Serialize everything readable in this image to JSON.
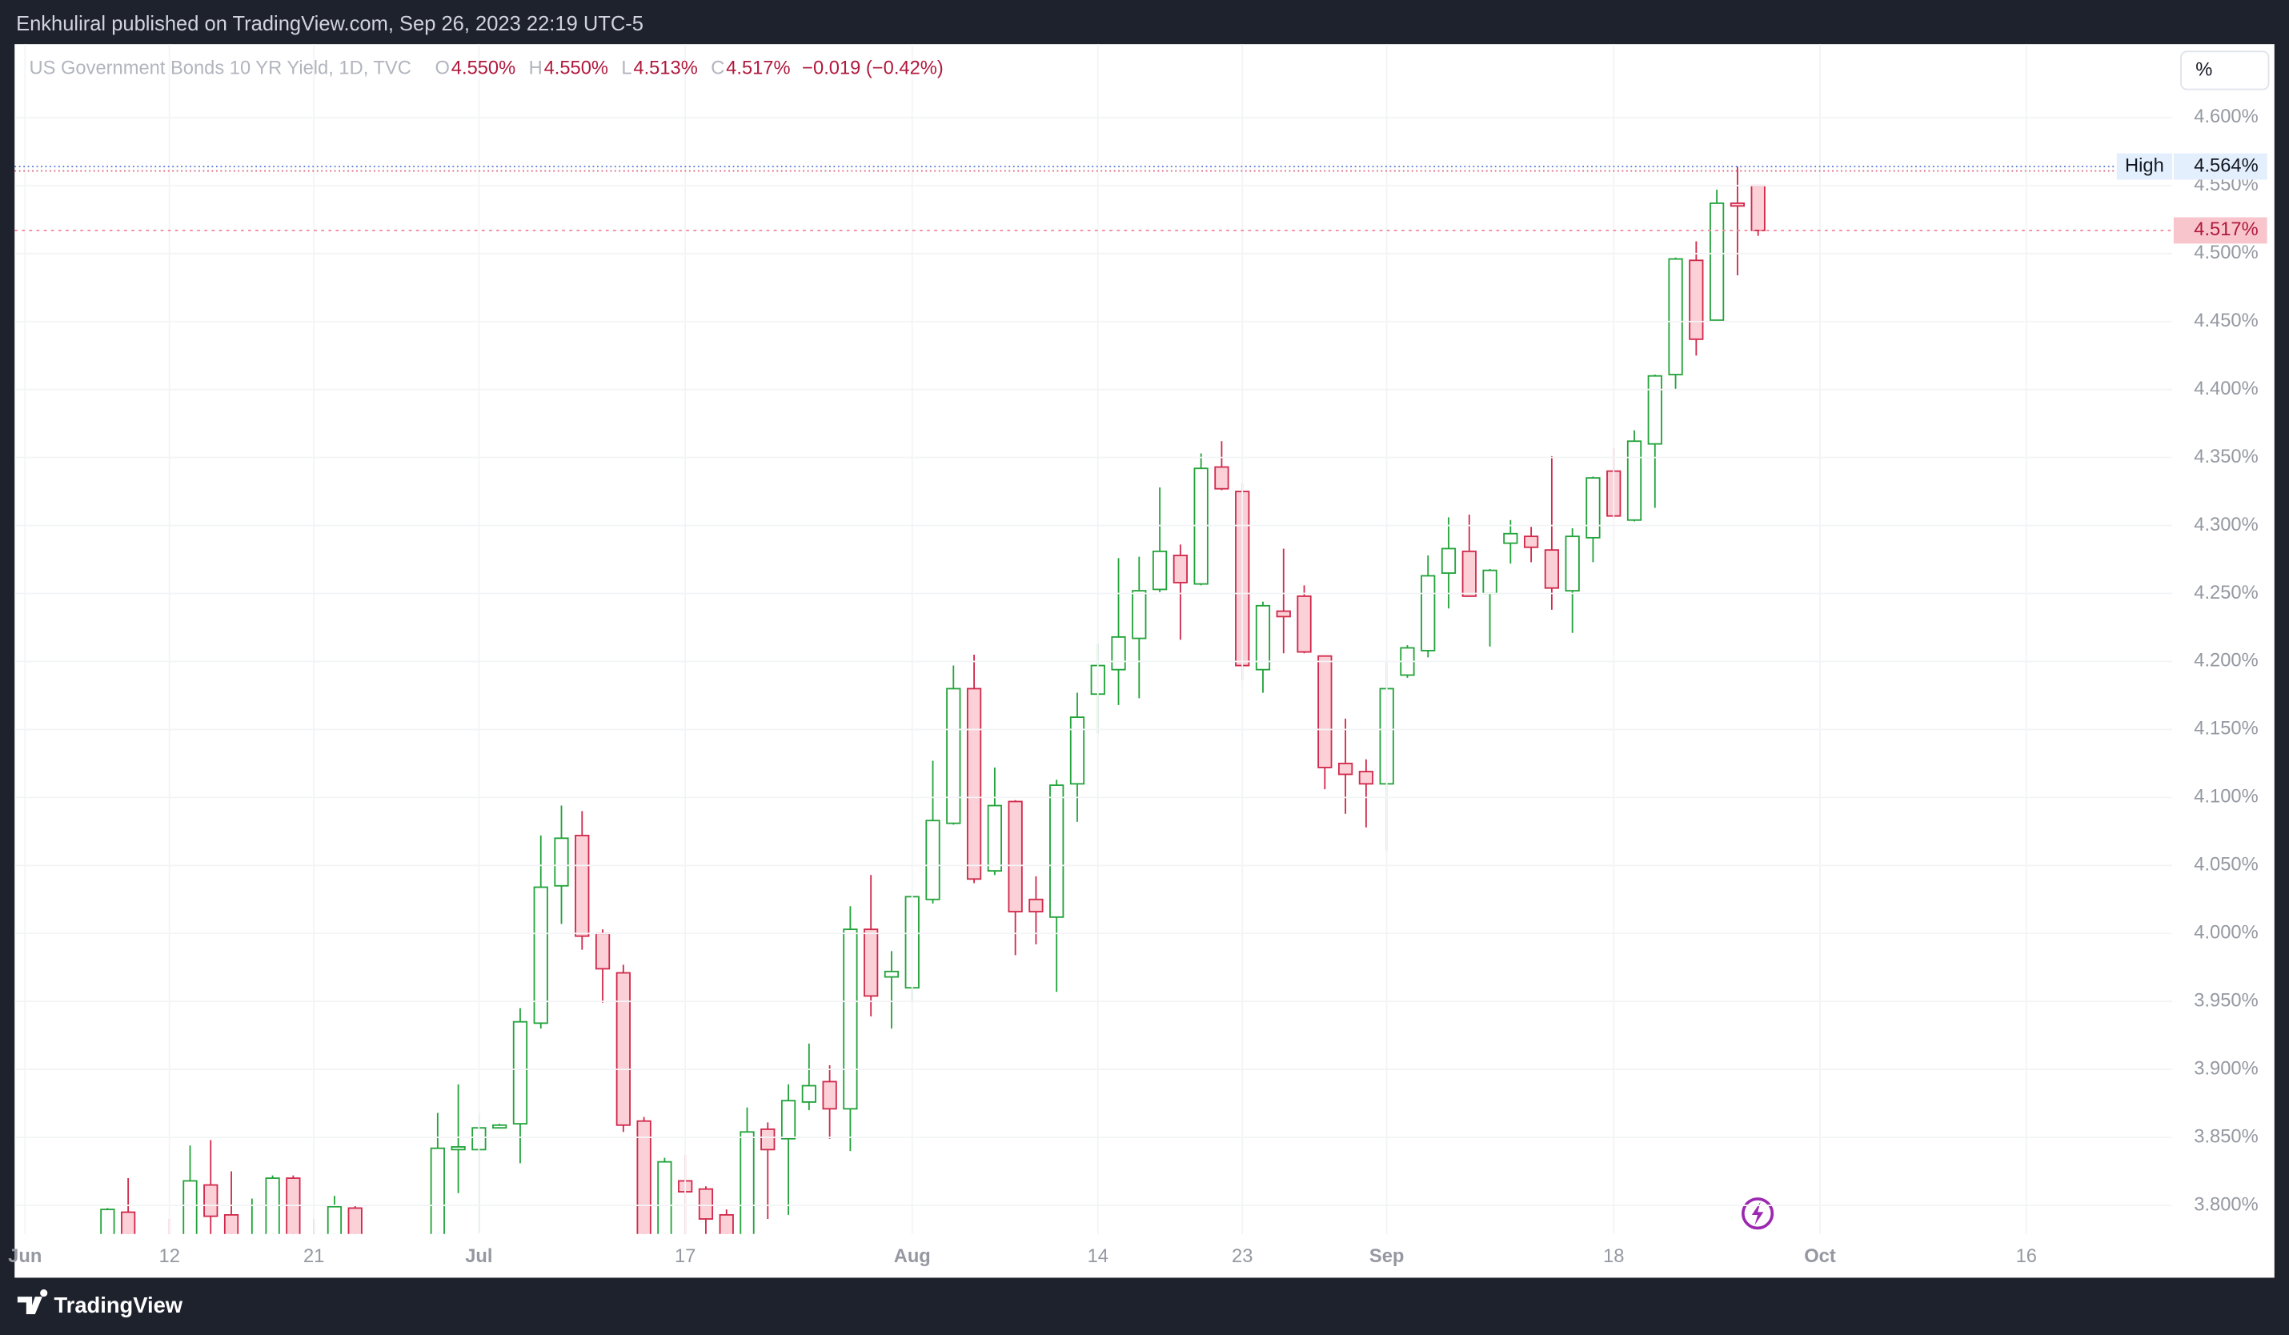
{
  "header": {
    "publisher": "Enkhuliral published on TradingView.com, Sep 26, 2023 22:19 UTC-5",
    "unit_button": "%"
  },
  "footer": {
    "brand": "TradingView"
  },
  "chart_data": {
    "type": "candlestick",
    "legend": {
      "name": "US Government Bonds 10 YR Yield, 1D, TVC",
      "items": [
        {
          "key": "O",
          "text": "4.550%"
        },
        {
          "key": "H",
          "text": "4.550%"
        },
        {
          "key": "L",
          "text": "4.513%"
        },
        {
          "key": "C",
          "text": "4.517%"
        }
      ],
      "change": "−0.019 (−0.42%)"
    },
    "x": [
      "2023-06-07",
      "2023-06-08",
      "2023-06-09",
      "2023-06-12",
      "2023-06-13",
      "2023-06-14",
      "2023-06-15",
      "2023-06-16",
      "2023-06-19",
      "2023-06-20",
      "2023-06-21",
      "2023-06-22",
      "2023-06-23",
      "2023-06-26",
      "2023-06-27",
      "2023-06-28",
      "2023-06-29",
      "2023-06-30",
      "2023-07-03",
      "2023-07-04",
      "2023-07-05",
      "2023-07-06",
      "2023-07-07",
      "2023-07-10",
      "2023-07-11",
      "2023-07-12",
      "2023-07-13",
      "2023-07-14",
      "2023-07-17",
      "2023-07-18",
      "2023-07-19",
      "2023-07-20",
      "2023-07-21",
      "2023-07-24",
      "2023-07-25",
      "2023-07-26",
      "2023-07-27",
      "2023-07-28",
      "2023-07-31",
      "2023-08-01",
      "2023-08-02",
      "2023-08-03",
      "2023-08-04",
      "2023-08-07",
      "2023-08-08",
      "2023-08-09",
      "2023-08-10",
      "2023-08-11",
      "2023-08-14",
      "2023-08-15",
      "2023-08-16",
      "2023-08-17",
      "2023-08-18",
      "2023-08-21",
      "2023-08-22",
      "2023-08-23",
      "2023-08-24",
      "2023-08-25",
      "2023-08-28",
      "2023-08-29",
      "2023-08-30",
      "2023-08-31",
      "2023-09-01",
      "2023-09-04",
      "2023-09-05",
      "2023-09-06",
      "2023-09-07",
      "2023-09-08",
      "2023-09-11",
      "2023-09-12",
      "2023-09-13",
      "2023-09-14",
      "2023-09-15",
      "2023-09-18",
      "2023-09-19",
      "2023-09-20",
      "2023-09-21",
      "2023-09-22",
      "2023-09-25",
      "2023-09-26",
      "2023-09-27"
    ],
    "open": [
      3.76,
      3.795,
      3.76,
      3.77,
      3.76,
      3.815,
      3.793,
      3.74,
      3.76,
      3.82,
      3.77,
      3.77,
      3.798,
      3.76,
      3.73,
      3.72,
      3.74,
      3.841,
      3.841,
      3.857,
      3.86,
      3.934,
      4.035,
      4.072,
      4.0,
      3.971,
      3.862,
      3.74,
      3.818,
      3.812,
      3.793,
      3.76,
      3.856,
      3.849,
      3.876,
      3.891,
      3.871,
      4.003,
      3.968,
      3.96,
      4.025,
      4.081,
      4.18,
      4.046,
      4.097,
      4.025,
      4.012,
      4.11,
      4.176,
      4.194,
      4.217,
      4.253,
      4.278,
      4.257,
      4.343,
      4.325,
      4.194,
      4.237,
      4.248,
      4.204,
      4.125,
      4.119,
      4.11,
      4.19,
      4.208,
      4.265,
      4.281,
      4.25,
      4.287,
      4.292,
      4.282,
      4.252,
      4.291,
      4.34,
      4.304,
      4.36,
      4.411,
      4.495,
      4.451,
      4.537,
      4.55
    ],
    "high": [
      3.798,
      3.82,
      3.77,
      3.79,
      3.844,
      3.848,
      3.825,
      3.805,
      3.822,
      3.822,
      3.79,
      3.807,
      3.8,
      3.77,
      3.76,
      3.77,
      3.868,
      3.889,
      3.868,
      3.86,
      3.945,
      4.072,
      4.094,
      4.09,
      4.003,
      3.977,
      3.865,
      3.835,
      3.837,
      3.814,
      3.797,
      3.872,
      3.861,
      3.889,
      3.919,
      3.903,
      4.02,
      4.043,
      3.987,
      4.027,
      4.127,
      4.197,
      4.205,
      4.122,
      4.098,
      4.042,
      4.113,
      4.177,
      4.213,
      4.276,
      4.277,
      4.328,
      4.286,
      4.353,
      4.362,
      4.331,
      4.244,
      4.283,
      4.256,
      4.204,
      4.158,
      4.128,
      4.2,
      4.212,
      4.278,
      4.306,
      4.308,
      4.268,
      4.304,
      4.299,
      4.351,
      4.298,
      4.336,
      4.357,
      4.37,
      4.411,
      4.497,
      4.509,
      4.547,
      4.564,
      4.55
    ],
    "low": [
      3.74,
      3.74,
      3.71,
      3.73,
      3.74,
      3.77,
      3.74,
      3.73,
      3.75,
      3.76,
      3.75,
      3.76,
      3.75,
      3.7,
      3.69,
      3.7,
      3.73,
      3.809,
      3.78,
      3.857,
      3.831,
      3.93,
      4.007,
      3.988,
      3.949,
      3.854,
      3.73,
      3.72,
      3.77,
      3.77,
      3.75,
      3.74,
      3.79,
      3.793,
      3.87,
      3.849,
      3.84,
      3.939,
      3.93,
      3.949,
      4.022,
      4.08,
      4.037,
      4.043,
      3.984,
      3.992,
      3.957,
      4.082,
      4.147,
      4.168,
      4.173,
      4.251,
      4.216,
      4.256,
      4.326,
      4.186,
      4.177,
      4.206,
      4.206,
      4.106,
      4.088,
      4.078,
      4.061,
      4.188,
      4.203,
      4.239,
      4.248,
      4.211,
      4.272,
      4.273,
      4.238,
      4.221,
      4.273,
      4.306,
      4.303,
      4.313,
      4.4,
      4.425,
      4.45,
      4.484,
      4.513
    ],
    "close": [
      3.797,
      3.76,
      3.74,
      3.74,
      3.818,
      3.792,
      3.76,
      3.77,
      3.82,
      3.77,
      3.76,
      3.799,
      3.76,
      3.73,
      3.72,
      3.74,
      3.842,
      3.843,
      3.857,
      3.859,
      3.935,
      4.034,
      4.07,
      3.998,
      3.974,
      3.859,
      3.76,
      3.832,
      3.81,
      3.79,
      3.77,
      3.854,
      3.841,
      3.877,
      3.888,
      3.871,
      4.003,
      3.954,
      3.972,
      4.027,
      4.083,
      4.18,
      4.04,
      4.094,
      4.016,
      4.016,
      4.109,
      4.159,
      4.197,
      4.218,
      4.252,
      4.281,
      4.258,
      4.342,
      4.327,
      4.197,
      4.241,
      4.233,
      4.207,
      4.122,
      4.117,
      4.11,
      4.18,
      4.21,
      4.263,
      4.283,
      4.248,
      4.267,
      4.294,
      4.284,
      4.254,
      4.292,
      4.335,
      4.307,
      4.362,
      4.41,
      4.496,
      4.437,
      4.537,
      4.535,
      4.517
    ],
    "up_color": "#22a33a",
    "down_color": "#d1294b",
    "up_fill": "#ffffff",
    "down_fill": "#fbd0d7",
    "xlim": [
      "2023-05-31",
      "2023-10-25"
    ],
    "xticks": [
      {
        "value": "2023-06-01",
        "label": "Jun"
      },
      {
        "value": "2023-06-12",
        "label": "12"
      },
      {
        "value": "2023-06-21",
        "label": "21"
      },
      {
        "value": "2023-07-03",
        "label": "Jul"
      },
      {
        "value": "2023-07-17",
        "label": "17"
      },
      {
        "value": "2023-08-01",
        "label": "Aug"
      },
      {
        "value": "2023-08-14",
        "label": "14"
      },
      {
        "value": "2023-08-23",
        "label": "23"
      },
      {
        "value": "2023-09-01",
        "label": "Sep"
      },
      {
        "value": "2023-09-18",
        "label": "18"
      },
      {
        "value": "2023-10-02",
        "label": "Oct"
      },
      {
        "value": "2023-10-16",
        "label": "16"
      }
    ],
    "ylim": [
      3.779,
      4.654
    ],
    "yticks": [
      {
        "value": 3.8,
        "label": "3.800%"
      },
      {
        "value": 3.85,
        "label": "3.850%"
      },
      {
        "value": 3.9,
        "label": "3.900%"
      },
      {
        "value": 3.95,
        "label": "3.950%"
      },
      {
        "value": 4.0,
        "label": "4.000%"
      },
      {
        "value": 4.05,
        "label": "4.050%"
      },
      {
        "value": 4.1,
        "label": "4.100%"
      },
      {
        "value": 4.15,
        "label": "4.150%"
      },
      {
        "value": 4.2,
        "label": "4.200%"
      },
      {
        "value": 4.25,
        "label": "4.250%"
      },
      {
        "value": 4.3,
        "label": "4.300%"
      },
      {
        "value": 4.35,
        "label": "4.350%"
      },
      {
        "value": 4.4,
        "label": "4.400%"
      },
      {
        "value": 4.45,
        "label": "4.450%"
      },
      {
        "value": 4.5,
        "label": "4.500%"
      },
      {
        "value": 4.55,
        "label": "4.550%"
      },
      {
        "value": 4.6,
        "label": "4.600%"
      }
    ],
    "grid": true,
    "high_line": {
      "label": "High",
      "value": 4.564,
      "value_label": "4.564%",
      "color": "#5b7fd6"
    },
    "last_price": {
      "value": 4.517,
      "value_label": "4.517%",
      "color": "#f28da0"
    }
  }
}
